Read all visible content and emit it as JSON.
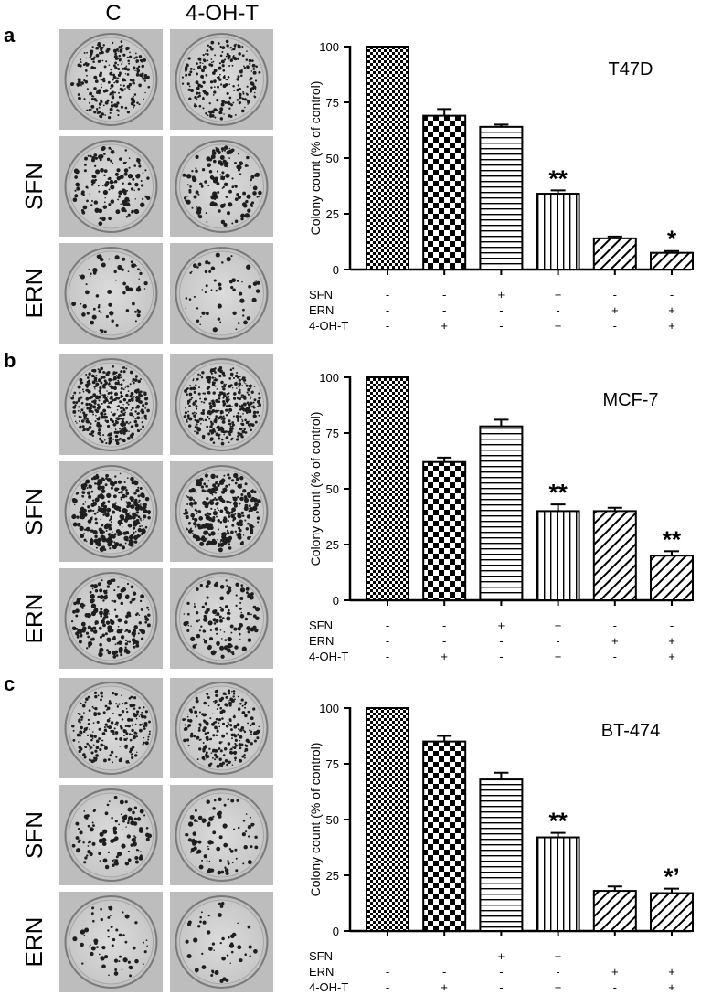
{
  "figure": {
    "column_labels": [
      "C",
      "4-OH-T"
    ],
    "row_labels": [
      "SFN",
      "ERN"
    ],
    "condition_rows": [
      "SFN",
      "ERN",
      "4-OH-T"
    ],
    "condition_signs": [
      [
        "-",
        "-",
        "+",
        "+",
        "-",
        "-"
      ],
      [
        "-",
        "-",
        "-",
        "-",
        "+",
        "+"
      ],
      [
        "-",
        "+",
        "-",
        "+",
        "-",
        "+"
      ]
    ],
    "bar_patterns": [
      "fine-checker",
      "checker",
      "horizontal-lines",
      "vertical-lines",
      "diagonal-lines",
      "diagonal-lines"
    ]
  },
  "chart_data": [
    {
      "panel": "a",
      "type": "bar",
      "title": "T47D",
      "ylabel": "Colony count (% of control)",
      "ylim": [
        0,
        100
      ],
      "yticks": [
        0,
        25,
        50,
        75,
        100
      ],
      "values": [
        100,
        69,
        64,
        34,
        14,
        7.5
      ],
      "errors": [
        0,
        3,
        1,
        1.5,
        0.8,
        0.8
      ],
      "annotations": [
        "",
        "",
        "",
        "**",
        "",
        "*"
      ]
    },
    {
      "panel": "b",
      "type": "bar",
      "title": "MCF-7",
      "ylabel": "Colony count (% of control)",
      "ylim": [
        0,
        100
      ],
      "yticks": [
        0,
        25,
        50,
        75,
        100
      ],
      "values": [
        100,
        62,
        78,
        40,
        40,
        20
      ],
      "errors": [
        0,
        2,
        3,
        3,
        1.5,
        2
      ],
      "annotations": [
        "",
        "",
        "",
        "**",
        "",
        "**"
      ]
    },
    {
      "panel": "c",
      "type": "bar",
      "title": "BT-474",
      "ylabel": "Colony count (% of control)",
      "ylim": [
        0,
        100
      ],
      "yticks": [
        0,
        25,
        50,
        75,
        100
      ],
      "values": [
        100,
        85,
        68,
        42,
        18,
        17
      ],
      "errors": [
        0,
        2.5,
        3,
        2,
        2,
        2
      ],
      "annotations": [
        "",
        "",
        "",
        "**",
        "",
        "*’"
      ]
    }
  ]
}
